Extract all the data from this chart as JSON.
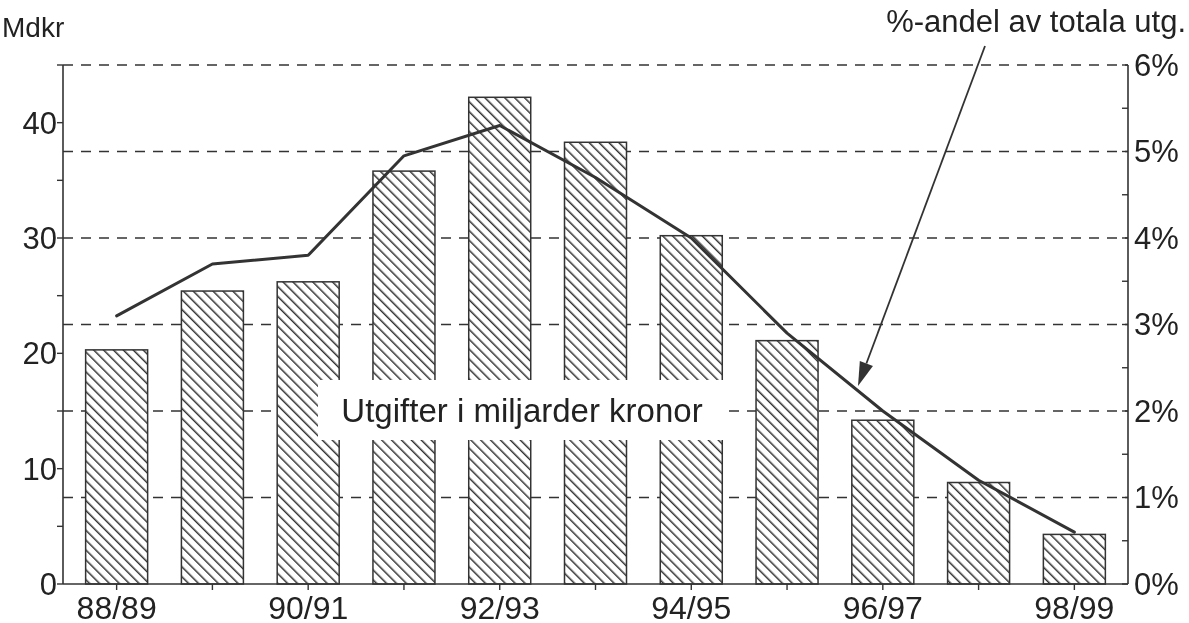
{
  "chart_data": {
    "type": "bar",
    "ylabel": "Mdkr",
    "categories": [
      "88/89",
      null,
      "90/91",
      null,
      "92/93",
      null,
      "94/95",
      null,
      "96/97",
      null,
      "98/99"
    ],
    "series": [
      {
        "name": "Utgifter i miljarder kronor",
        "color": "#333333",
        "values": [
          20.3,
          25.4,
          26.2,
          35.8,
          42.2,
          38.3,
          30.2,
          21.1,
          14.2,
          8.8,
          4.3
        ]
      },
      {
        "name": "%-andel av totala utg.",
        "type": "line",
        "axis": "y2",
        "color": "#333333",
        "values": [
          3.1,
          3.7,
          3.8,
          4.95,
          5.3,
          4.7,
          4.0,
          2.9,
          2.0,
          1.2,
          0.6
        ]
      }
    ],
    "ylim": [
      0,
      45
    ],
    "yticks": [
      0,
      {
        "value": 5,
        "label": null
      },
      10,
      {
        "value": 15,
        "label": null
      },
      20,
      {
        "value": 25,
        "label": null
      },
      30,
      {
        "value": 35,
        "label": null
      },
      40,
      {
        "value": 45,
        "label": null
      }
    ],
    "y2lim": [
      0,
      6
    ],
    "y2ticks": [
      {
        "value": 0,
        "label": "0%"
      },
      {
        "value": 0.5,
        "label": null
      },
      {
        "value": 1,
        "label": "1%"
      },
      {
        "value": 1.5,
        "label": null
      },
      {
        "value": 2,
        "label": "2%"
      },
      {
        "value": 2.5,
        "label": null
      },
      {
        "value": 3,
        "label": "3%"
      },
      {
        "value": 3.5,
        "label": null
      },
      {
        "value": 4,
        "label": "4%"
      },
      {
        "value": 4.5,
        "label": null
      },
      {
        "value": 5,
        "label": "5%"
      },
      {
        "value": 5.5,
        "label": null
      },
      {
        "value": 6,
        "label": "6%"
      }
    ],
    "grid": "y2",
    "line_style": "solid",
    "marker": "none"
  }
}
